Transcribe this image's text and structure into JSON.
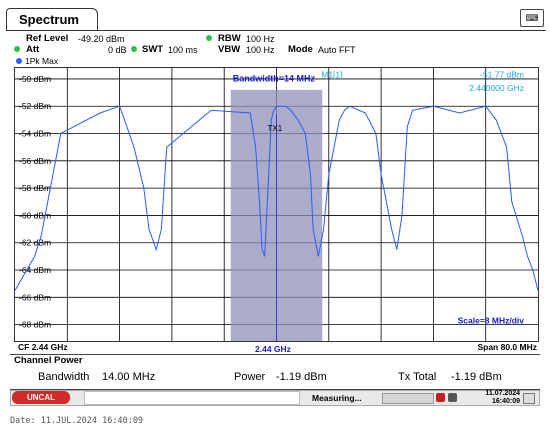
{
  "window": {
    "title": "Spectrum",
    "keyboard_icon": "keyboard-icon"
  },
  "settings": {
    "ref_level_label": "Ref Level",
    "ref_level_value": "-49.20 dBm",
    "att_label": "Att",
    "att_value": "0 dB",
    "swt_label": "SWT",
    "swt_value": "100 ms",
    "rbw_label": "RBW",
    "rbw_value": "100 Hz",
    "vbw_label": "VBW",
    "vbw_value": "100 Hz",
    "mode_label": "Mode",
    "mode_value": "Auto FFT"
  },
  "trace": {
    "label": "1Pk Max",
    "color": "#2b5cff"
  },
  "marker": {
    "label": "M1[1]",
    "level": "-51.77 dBm",
    "freq": "2.440000 GHz",
    "color": "#1aa6e6"
  },
  "channel": {
    "bandwidth_label": "Bandwidth=14 MHz",
    "tx_label": "TX1",
    "fill": "#8f8fb8"
  },
  "footer": {
    "cf": "CF 2.44 GHz",
    "center": "2.44 GHz",
    "span": "Span 80.0 MHz",
    "scale": "Scale=8 MHz/div"
  },
  "channel_power": {
    "title": "Channel Power",
    "bandwidth_label": "Bandwidth",
    "bandwidth_value": "14.00 MHz",
    "power_label": "Power",
    "power_value": "-1.19 dBm",
    "txtotal_label": "Tx Total",
    "txtotal_value": "-1.19 dBm"
  },
  "status": {
    "uncal": "UNCAL",
    "measuring": "Measuring...",
    "date": "11.07.2024",
    "time": "16:40:09"
  },
  "date_line": "Date: 11.JUL.2024  16:40:09",
  "chart_data": {
    "type": "line",
    "xlabel": "",
    "ylabel": "",
    "x_center_ghz": 2.44,
    "span_mhz": 80,
    "yticks": [
      "-50 dBm",
      "-52 dBm",
      "-54 dBm",
      "-56 dBm",
      "-58 dBm",
      "-60 dBm",
      "-62 dBm",
      "-64 dBm",
      "-66 dBm",
      "-68 dBm"
    ],
    "ylim": [
      -69.2,
      -49.2
    ],
    "grid": true,
    "series": [
      {
        "x_offset_mhz": [
          -40,
          -37,
          -36,
          -33,
          -27,
          -24,
          -23.4,
          -21.8,
          -20.3,
          -19.5,
          -18.4,
          -17.6,
          -16.8,
          -10,
          -4,
          -3.2,
          -2.6,
          -2.2,
          -1.8,
          -1.2,
          -0.8,
          -0.4,
          0,
          0.6,
          1.4,
          2.2,
          3.3,
          4.4,
          5.2,
          5.6,
          6.4,
          7.2,
          8,
          9.6,
          10.4,
          11.2,
          13.6,
          15.2,
          16,
          17.6,
          18.4,
          19.2,
          20,
          20.8,
          24,
          28,
          32,
          33.6,
          35.2,
          36,
          37.6,
          38.4,
          39.2,
          40
        ],
        "level_dbm": [
          -65.5,
          -63,
          -61.5,
          -54,
          -52.5,
          -52,
          -52.8,
          -55,
          -58,
          -61,
          -62.5,
          -61,
          -55,
          -52.3,
          -52.5,
          -55,
          -59,
          -62.5,
          -63,
          -57,
          -53,
          -52.3,
          -52,
          -52,
          -52,
          -52.3,
          -53,
          -54,
          -57,
          -61,
          -63,
          -61,
          -57,
          -53,
          -52.3,
          -52,
          -52.5,
          -54,
          -57,
          -61,
          -62.5,
          -60,
          -53.5,
          -52.3,
          -52,
          -52.5,
          -52,
          -53,
          -55,
          -59,
          -61.5,
          -63,
          -64,
          -65.5
        ]
      }
    ]
  }
}
